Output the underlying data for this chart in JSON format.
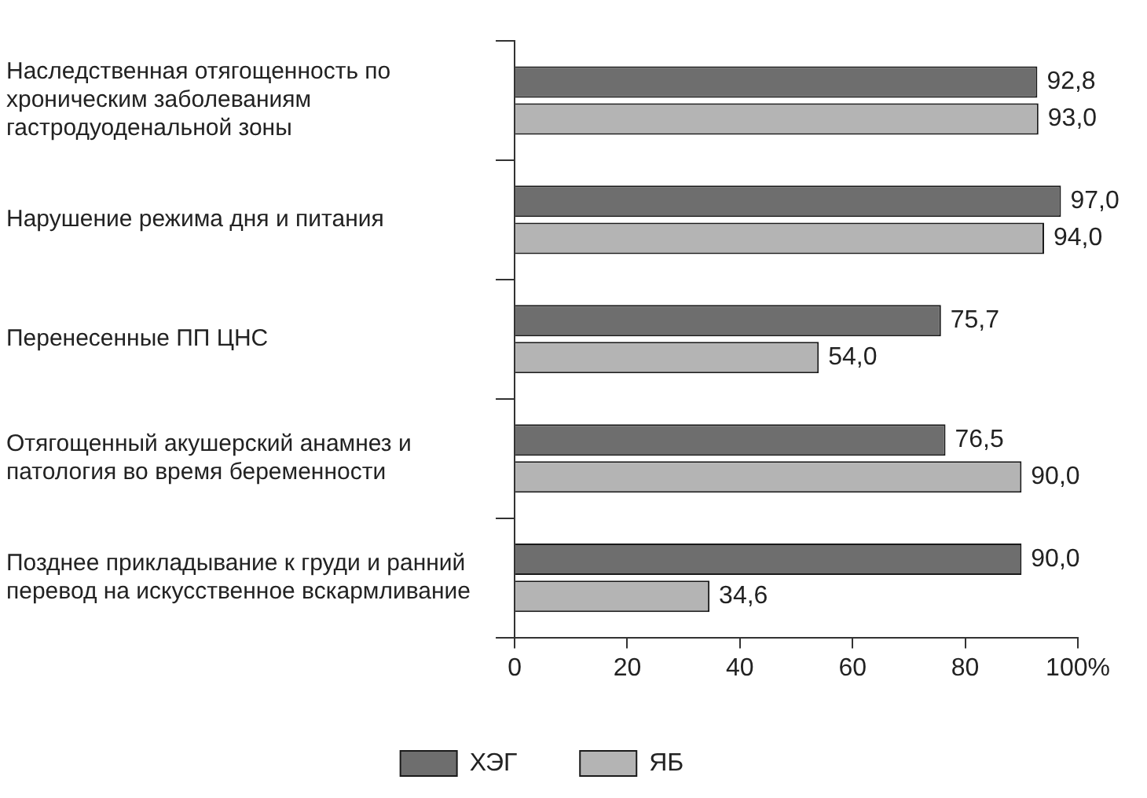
{
  "chart_data": {
    "type": "bar",
    "orientation": "horizontal",
    "categories": [
      "Наследственная отягощенность по хроническим заболеваниям гастродуоденальной зоны",
      "Нарушение режима дня и питания",
      "Перенесенные ПП ЦНС",
      "Отягощенный акушерский анамнез и патология во время беременности",
      "Позднее прикладывание к груди и ранний перевод на искусственное вскармливание"
    ],
    "series": [
      {
        "name": "ХЭГ",
        "color": "#6e6e6e",
        "values": [
          92.8,
          97.0,
          75.7,
          76.5,
          90.0
        ],
        "value_labels": [
          "92,8",
          "97,0",
          "75,7",
          "76,5",
          "90,0"
        ]
      },
      {
        "name": "ЯБ",
        "color": "#b4b4b4",
        "values": [
          93.0,
          94.0,
          54.0,
          90.0,
          34.6
        ],
        "value_labels": [
          "93,0",
          "94,0",
          "54,0",
          "90,0",
          "34,6"
        ]
      }
    ],
    "xlim": [
      0,
      100
    ],
    "xticks": [
      0,
      20,
      40,
      60,
      80,
      {
        "value": 100,
        "label": "100%"
      }
    ],
    "grid": false,
    "legend": "bottom"
  }
}
